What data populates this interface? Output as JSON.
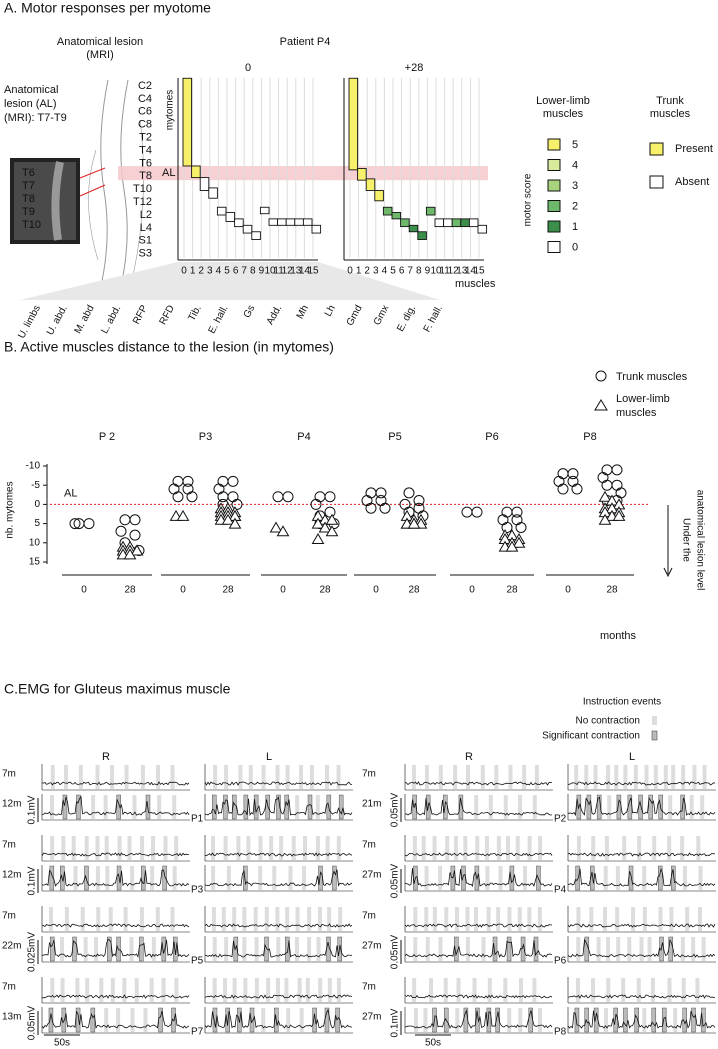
{
  "chart_data": [
    {
      "type": "step",
      "title": "A. Motor responses per myotome",
      "lesion_header": [
        "Anatomical lesion",
        "(MRI)"
      ],
      "patient": "Patient P4",
      "lesion_text": [
        "Anatomical",
        "lesion (AL)",
        "(MRI): T7-T9"
      ],
      "mri_labels": [
        "T6",
        "T7",
        "T8",
        "T9",
        "T10"
      ],
      "al_label": "AL",
      "lesion_range": [
        6.2,
        7.3
      ],
      "ylabel": "mytomes",
      "myotomes": [
        "C2",
        "C4",
        "C6",
        "C8",
        "T2",
        "T4",
        "T6",
        "T8",
        "T10",
        "T12",
        "L2",
        "L4",
        "S1",
        "S3"
      ],
      "xticks": [
        0,
        1,
        2,
        3,
        4,
        5,
        6,
        7,
        8,
        9,
        10,
        11,
        12,
        13,
        14,
        15
      ],
      "xlabel": "muscles",
      "muscles": [
        "U. limbs",
        "U. abd.",
        "M. abd",
        "L. abd.",
        "RFP",
        "RFD",
        "Tib.",
        "E. hall.",
        "Gs",
        "Add.",
        "Mh",
        "Lh",
        "Gmd",
        "Gmx",
        "E. dig.",
        "F. hall."
      ],
      "panels": [
        {
          "name": "0",
          "top": [
            -0.6,
            6.2,
            7.1,
            7.9,
            9.4,
            9.8,
            10.3,
            10.8,
            11.3,
            9.4,
            10.3,
            10.3,
            10.3,
            10.3,
            10.3,
            10.8
          ],
          "bottom": [
            6.2,
            7.1,
            8.1,
            8.7,
            10.0,
            10.5,
            10.9,
            11.4,
            11.9,
            9.9,
            10.8,
            10.8,
            10.8,
            10.8,
            10.8,
            11.4
          ],
          "scores": [
            5,
            5,
            0,
            0,
            0,
            0,
            0,
            0,
            0,
            0,
            0,
            0,
            0,
            0,
            0,
            0
          ]
        },
        {
          "name": "+28",
          "top": [
            -0.6,
            6.4,
            7.2,
            8.1,
            9.4,
            9.8,
            10.3,
            10.8,
            11.3,
            9.4,
            10.3,
            10.3,
            10.3,
            10.3,
            10.3,
            10.8
          ],
          "bottom": [
            6.5,
            7.3,
            8.1,
            8.9,
            10.0,
            10.3,
            10.9,
            11.3,
            11.9,
            10.0,
            10.9,
            10.9,
            10.9,
            10.9,
            10.9,
            11.4
          ],
          "scores": [
            5,
            5,
            5,
            5,
            2,
            2,
            2,
            1,
            1,
            2,
            0,
            0,
            2,
            1,
            0,
            0
          ]
        }
      ],
      "legend_lower": {
        "title": [
          "Lower-limb",
          "muscles"
        ],
        "scores": [
          5,
          4,
          3,
          2,
          1,
          0
        ],
        "colors": [
          "#f6f06a",
          "#d8ea9c",
          "#a7d47d",
          "#6db86a",
          "#3b8f4b",
          "#ffffff"
        ]
      },
      "score_label": "motor score",
      "legend_trunk": {
        "title": [
          "Trunk",
          "muscles"
        ],
        "items": [
          "Present",
          "Absent"
        ],
        "colors": [
          "#f6f06a",
          "#ffffff"
        ]
      }
    },
    {
      "type": "strip",
      "title": "B. Active muscles distance to the lesion (in mytomes)",
      "legend_circle": "Trunk muscles",
      "legend_triangle": [
        "Lower-limb",
        "muscles"
      ],
      "ylabel": "nb. mytomes",
      "ylim": [
        15,
        -10
      ],
      "yticks": [
        -10,
        -5,
        0,
        5,
        10,
        15
      ],
      "al_label": "AL",
      "al_line": 0,
      "xlabel": "months",
      "arrow_text": [
        "Under the",
        "anatomical lesion level"
      ],
      "patients": [
        {
          "name": "P 2",
          "times": [
            0,
            28
          ],
          "circles": [
            [
              5,
              5,
              5
            ],
            [
              4,
              4,
              7,
              8,
              10,
              12
            ]
          ],
          "triangles": [
            [],
            [
              11,
              11,
              12,
              12,
              12,
              12,
              13,
              13
            ]
          ]
        },
        {
          "name": "P3",
          "times": [
            0,
            28
          ],
          "circles": [
            [
              -6,
              -6,
              -4,
              -4,
              -2,
              -2
            ],
            [
              -6,
              -6,
              -4,
              -2,
              -2,
              0,
              0
            ]
          ],
          "triangles": [
            [
              3,
              3
            ],
            [
              1,
              1,
              2,
              2,
              2,
              3,
              3,
              3,
              3,
              4,
              4,
              5
            ]
          ]
        },
        {
          "name": "P4",
          "times": [
            0,
            28
          ],
          "circles": [
            [
              -2,
              -2
            ],
            [
              -2,
              -2,
              0,
              2,
              3,
              5,
              5
            ]
          ],
          "triangles": [
            [
              6,
              7
            ],
            [
              3,
              4,
              4,
              5,
              6,
              7,
              9
            ]
          ]
        },
        {
          "name": "P5",
          "times": [
            0,
            28
          ],
          "circles": [
            [
              -3,
              -3,
              -1,
              -1,
              1,
              1
            ],
            [
              -3,
              -1,
              0,
              1,
              2,
              3
            ]
          ],
          "triangles": [
            [],
            [
              3,
              4,
              4,
              5,
              5,
              5,
              5,
              5
            ]
          ]
        },
        {
          "name": "P6",
          "times": [
            0,
            28
          ],
          "circles": [
            [
              2,
              2
            ],
            [
              2,
              2,
              4,
              4,
              6,
              6
            ]
          ],
          "triangles": [
            [],
            [
              8,
              8,
              9,
              9,
              10,
              10,
              11,
              11
            ]
          ]
        },
        {
          "name": "P8",
          "times": [
            0,
            28
          ],
          "circles": [
            [
              -8,
              -8,
              -6,
              -6,
              -4,
              -4
            ],
            [
              -9,
              -9,
              -7,
              -5,
              -5,
              -3,
              -1,
              -1
            ]
          ],
          "triangles": [
            [],
            [
              -2,
              -1,
              0,
              1,
              1,
              2,
              2,
              3,
              3,
              4
            ]
          ]
        }
      ]
    },
    {
      "type": "emg",
      "title": "C.EMG for Gluteus maximus muscle",
      "events_title": "Instruction events",
      "events": [
        "No contraction",
        "Significant contraction"
      ],
      "sides": [
        "R",
        "L"
      ],
      "time_scale": "50s",
      "patients": [
        {
          "name": "P1",
          "times": [
            "7m",
            "12m"
          ],
          "scale": "0.1mV"
        },
        {
          "name": "P2",
          "times": [
            "7m",
            "21m"
          ],
          "scale": "0.05mV"
        },
        {
          "name": "P3",
          "times": [
            "7m",
            "12m"
          ],
          "scale": "0.1mV"
        },
        {
          "name": "P4",
          "times": [
            "7m",
            "27m"
          ],
          "scale": "0.05mV"
        },
        {
          "name": "P5",
          "times": [
            "7m",
            "22m"
          ],
          "scale": "0.025mV"
        },
        {
          "name": "P6",
          "times": [
            "7m",
            "27m"
          ],
          "scale": "0.05mV"
        },
        {
          "name": "P7",
          "times": [
            "7m",
            "13m"
          ],
          "scale": "0.05mV"
        },
        {
          "name": "P8",
          "times": [
            "7m",
            "27m"
          ],
          "scale": "0.1mV"
        }
      ]
    }
  ]
}
